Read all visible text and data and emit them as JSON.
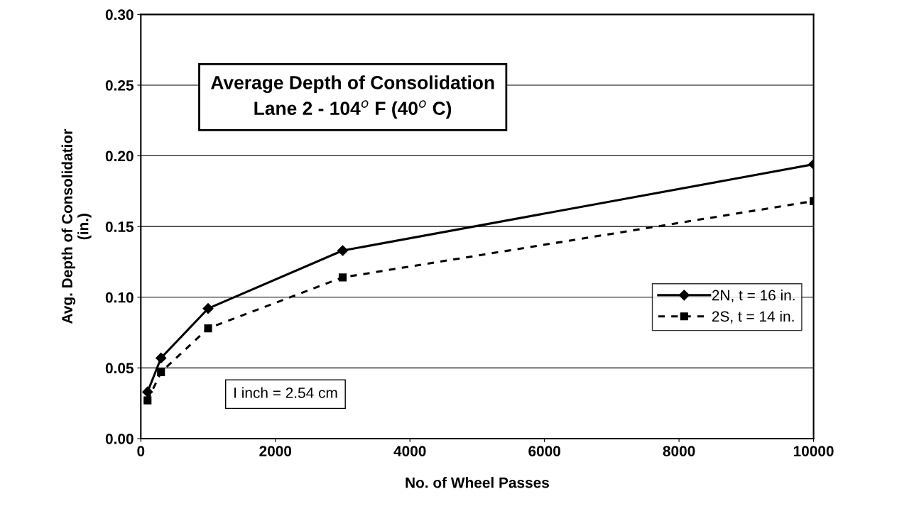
{
  "chart_data": {
    "type": "line",
    "title": "Average Depth of Consolidation",
    "subtitle": "Lane 2 - 104$^{o}$ F (40$^{o}$ C)",
    "xlabel": "No. of Wheel Passes",
    "ylabel": "Avg. Depth of Consolidatior\n(in.)",
    "annotations": [
      "I inch = 2.54 cm"
    ],
    "series": [
      {
        "name": "2N, t = 16 in.",
        "color": "#000000",
        "x": [
          100,
          300,
          1000,
          3000,
          10000
        ],
        "values": [
          0.033,
          0.057,
          0.092,
          0.133,
          0.194
        ],
        "marker": "diamond",
        "line_style": "solid"
      },
      {
        "name": "2S, t = 14 in.",
        "color": "#000000",
        "x": [
          100,
          300,
          1000,
          3000,
          10000
        ],
        "values": [
          0.027,
          0.047,
          0.078,
          0.114,
          0.168
        ],
        "marker": "square",
        "line_style": "dashed"
      }
    ],
    "xlim": [
      0,
      10000
    ],
    "xticks": [
      0,
      2000,
      4000,
      6000,
      8000,
      10000
    ],
    "ylim": [
      0,
      0.3
    ],
    "yticks": [
      {
        "value": 0,
        "label": "0.00"
      },
      {
        "value": 0.05,
        "label": "0.05"
      },
      {
        "value": 0.1,
        "label": "0.10"
      },
      {
        "value": 0.15,
        "label": "0.15"
      },
      {
        "value": 0.2,
        "label": "0.20"
      },
      {
        "value": 0.25,
        "label": "0.25"
      },
      {
        "value": 0.3,
        "label": "0.30"
      }
    ],
    "grid": "y",
    "legend": "center right"
  }
}
